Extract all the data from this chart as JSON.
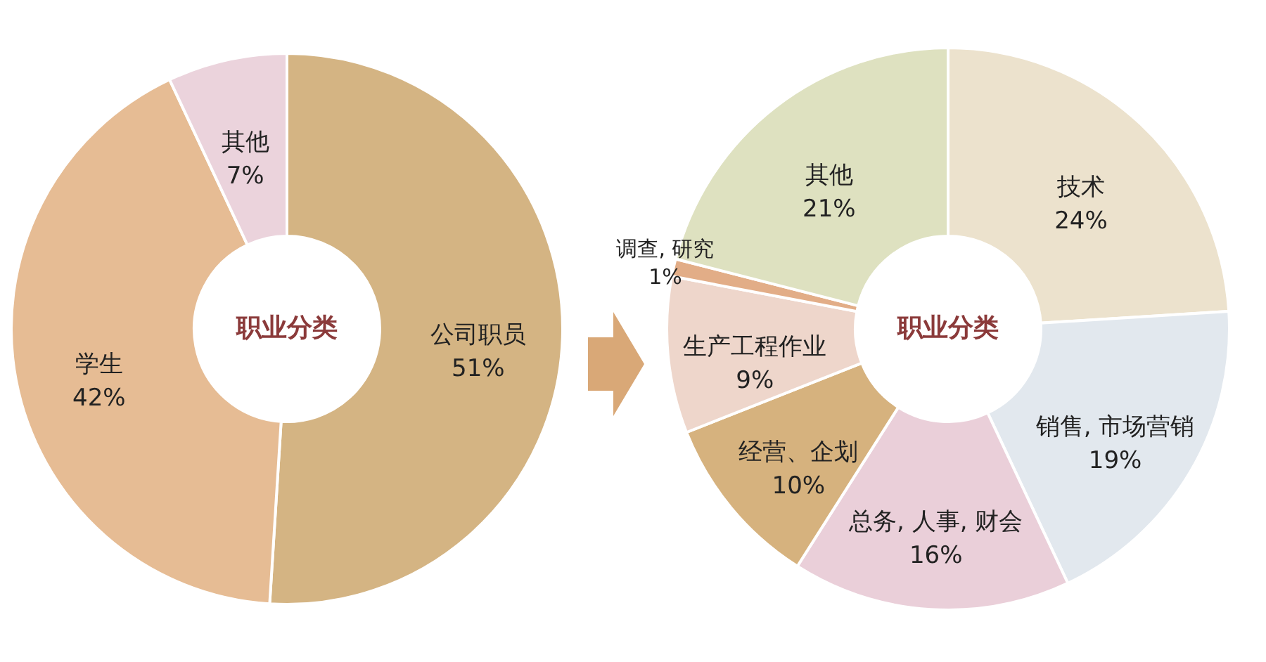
{
  "chart_data": [
    {
      "type": "donut",
      "categories": [
        "公司职员",
        "学生",
        "其他"
      ],
      "values": [
        51,
        42,
        7
      ],
      "colors": [
        "#d4b483",
        "#e6bc94",
        "#ebd3dc"
      ],
      "value_labels": [
        "51%",
        "42%",
        "7%"
      ],
      "annotations": [
        "职业分类"
      ]
    },
    {
      "type": "donut",
      "categories": [
        "技术",
        "销售, 市场营销",
        "总务, 人事, 财会",
        "经营、企划",
        "生产工程作业",
        "调查, 研究",
        "其他"
      ],
      "values": [
        24,
        19,
        16,
        10,
        9,
        1,
        21
      ],
      "colors": [
        "#ece2cd",
        "#e2e8ee",
        "#eacfd9",
        "#d6b27e",
        "#eed6cb",
        "#e2ad87",
        "#dee1c0"
      ],
      "value_labels": [
        "24%",
        "19%",
        "16%",
        "10%",
        "9%",
        "1%",
        "21%"
      ],
      "annotations": [
        "职业分类"
      ]
    }
  ]
}
